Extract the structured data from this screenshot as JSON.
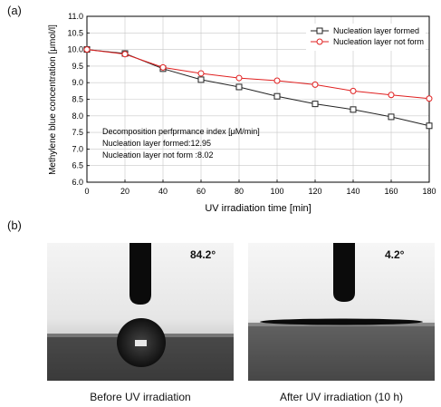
{
  "labels": {
    "panel_a": "(a)",
    "panel_b": "(b)"
  },
  "chart_data": {
    "type": "line",
    "xlabel": "UV irradiation time [min]",
    "ylabel": "Methylene blue concentration [μmol/l]",
    "xlim": [
      0,
      180
    ],
    "ylim": [
      6.0,
      11.0
    ],
    "x_ticks": [
      "0",
      "20",
      "40",
      "60",
      "80",
      "100",
      "120",
      "140",
      "160",
      "180"
    ],
    "y_ticks": [
      "6.0",
      "6.5",
      "7.0",
      "7.5",
      "8.0",
      "8.5",
      "9.0",
      "9.5",
      "10.0",
      "10.5",
      "11.0"
    ],
    "grid": true,
    "legend_position": "top-right",
    "x": [
      0,
      20,
      40,
      60,
      80,
      100,
      120,
      140,
      160,
      180
    ],
    "series": [
      {
        "name": "Nucleation layer formed",
        "marker": "square",
        "color": "#222222",
        "values": [
          10.0,
          9.88,
          9.42,
          9.09,
          8.87,
          8.59,
          8.36,
          8.19,
          7.97,
          7.7
        ]
      },
      {
        "name": "Nucleation layer not form",
        "marker": "circle",
        "color": "#e02020",
        "values": [
          10.0,
          9.86,
          9.46,
          9.28,
          9.14,
          9.06,
          8.94,
          8.75,
          8.63,
          8.52
        ]
      }
    ],
    "annotations": [
      "Decomposition perfprmance index [μM/min]",
      "Nucleation layer formed:12.95",
      "Nucleation layer not form :8.02"
    ]
  },
  "photos": [
    {
      "angle": "84.2°",
      "caption": "Before UV irradiation"
    },
    {
      "angle": "4.2°",
      "caption": "After UV irradiation (10 h)"
    }
  ]
}
